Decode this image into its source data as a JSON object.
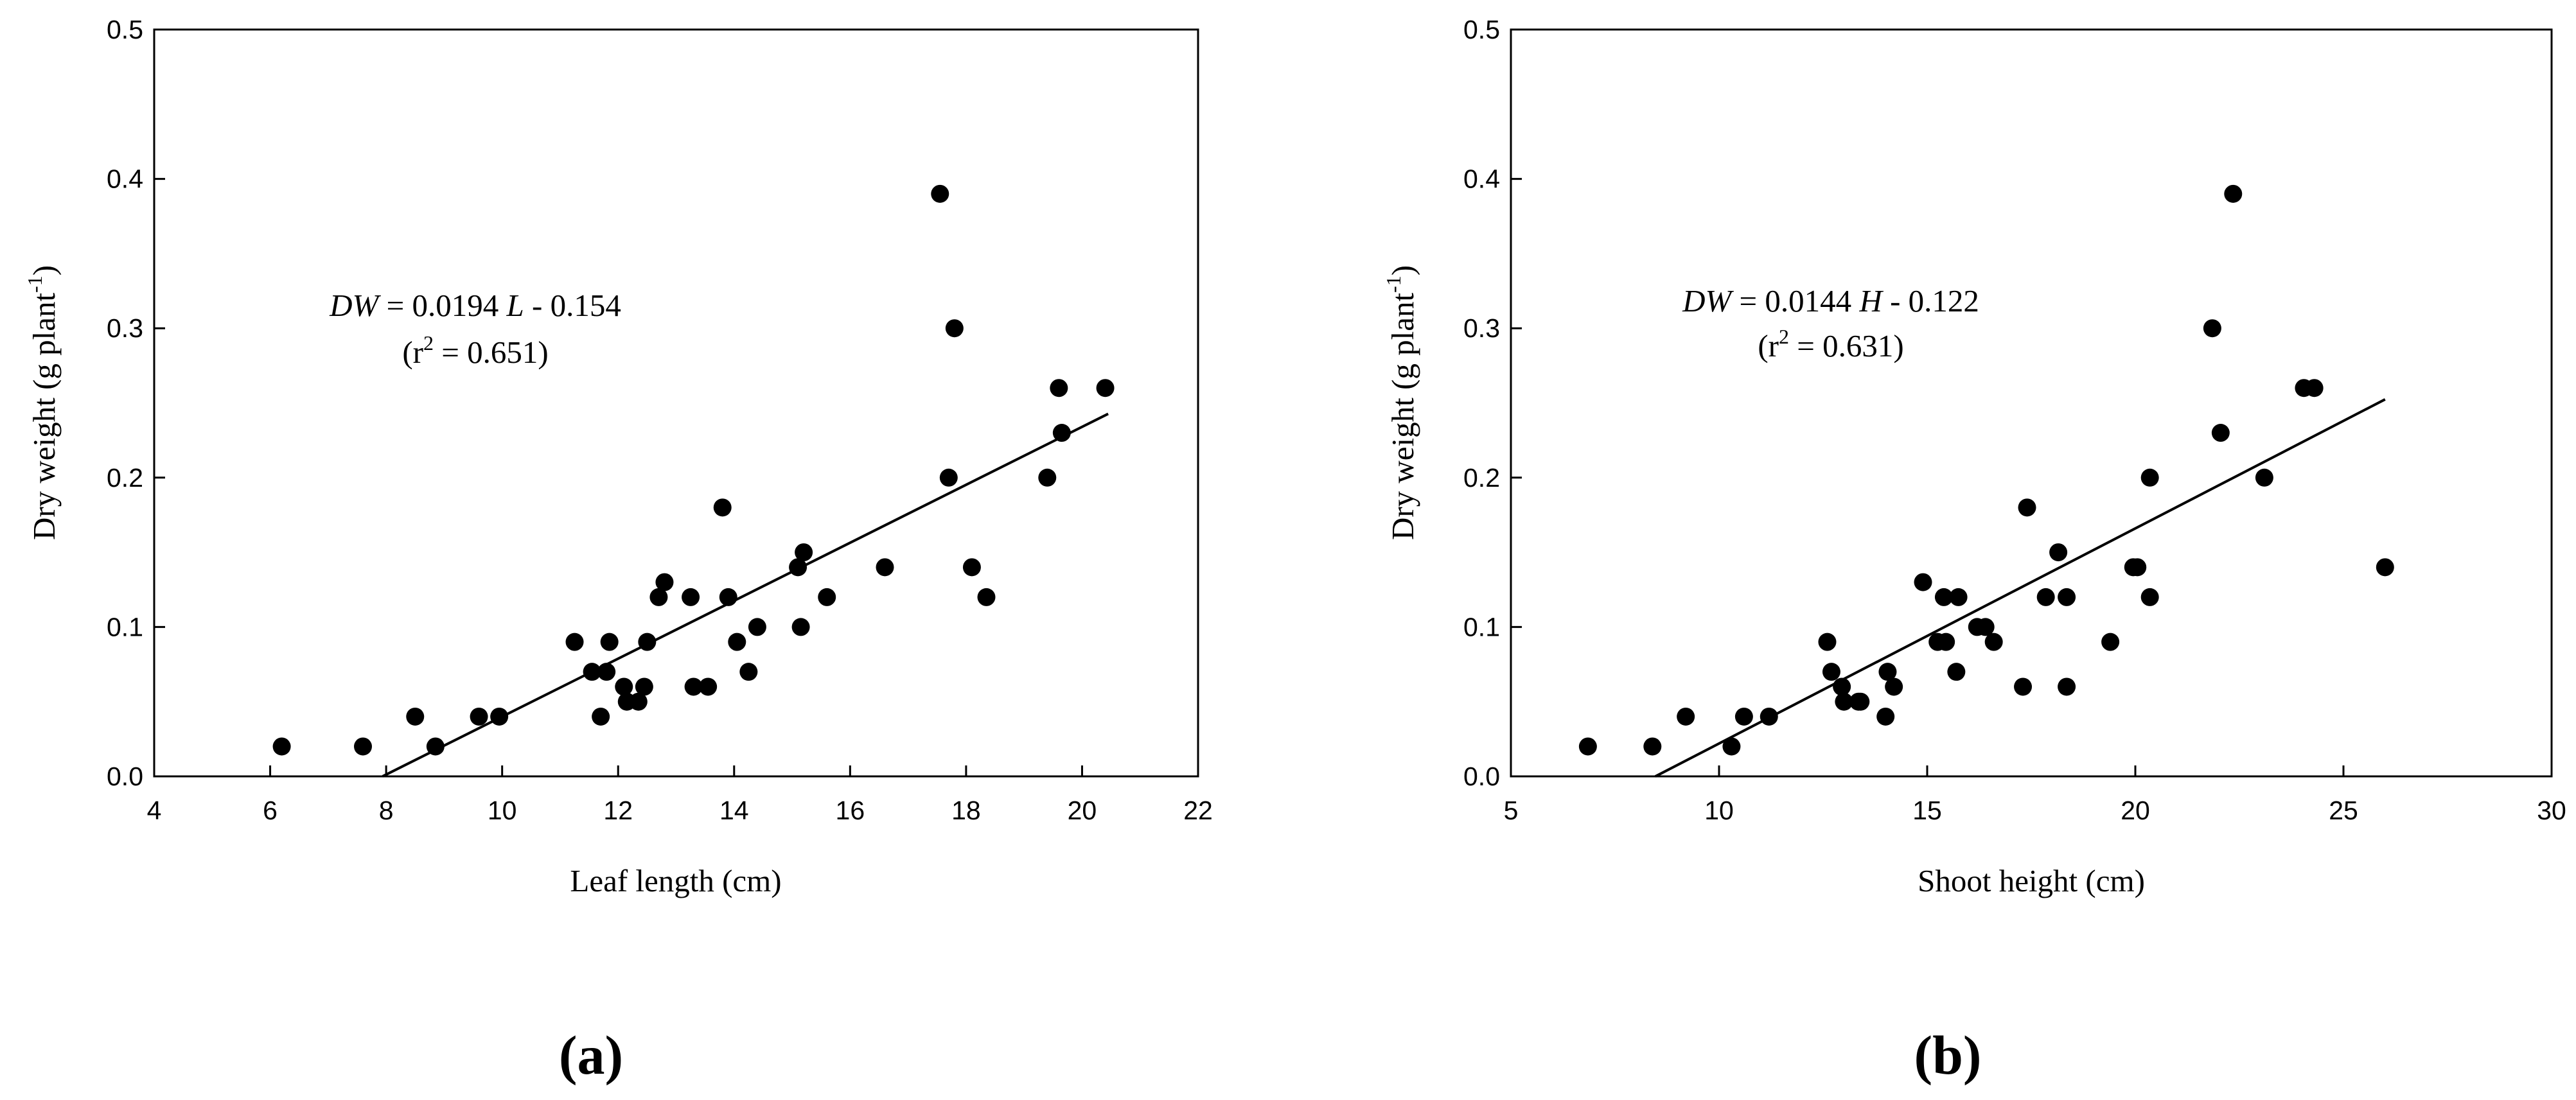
{
  "chart_data": [
    {
      "type": "scatter",
      "panel_label": "a",
      "xlabel": "Leaf length (cm)",
      "ylabel": "Dry weight (g plant",
      "ylabel_sup": "-1",
      "xlim": [
        4,
        22
      ],
      "ylim": [
        0.0,
        0.5
      ],
      "xticks": [
        "4",
        "6",
        "8",
        "10",
        "12",
        "14",
        "16",
        "18",
        "20",
        "22"
      ],
      "yticks": [
        "0.0",
        "0.1",
        "0.2",
        "0.3",
        "0.4",
        "0.5"
      ],
      "grid": false,
      "equation": {
        "lhs": "DW",
        "rest": " = 0.0194 ",
        "var": "L",
        "tail": " - 0.154"
      },
      "r2": {
        "pre": "(r",
        "sup": "2",
        "post": " = 0.651)"
      },
      "fit": {
        "slope": 0.0194,
        "intercept": -0.154,
        "x_range": [
          7.94,
          20.45
        ]
      },
      "points": [
        [
          6.2,
          0.02
        ],
        [
          7.6,
          0.02
        ],
        [
          8.5,
          0.04
        ],
        [
          8.85,
          0.02
        ],
        [
          9.6,
          0.04
        ],
        [
          9.95,
          0.04
        ],
        [
          11.25,
          0.09
        ],
        [
          11.55,
          0.07
        ],
        [
          11.7,
          0.04
        ],
        [
          11.8,
          0.07
        ],
        [
          11.85,
          0.09
        ],
        [
          12.1,
          0.06
        ],
        [
          12.15,
          0.05
        ],
        [
          12.35,
          0.05
        ],
        [
          12.45,
          0.06
        ],
        [
          12.5,
          0.09
        ],
        [
          12.7,
          0.12
        ],
        [
          12.8,
          0.13
        ],
        [
          13.25,
          0.12
        ],
        [
          13.3,
          0.06
        ],
        [
          13.55,
          0.06
        ],
        [
          13.8,
          0.18
        ],
        [
          13.9,
          0.12
        ],
        [
          14.05,
          0.09
        ],
        [
          14.25,
          0.07
        ],
        [
          14.4,
          0.1
        ],
        [
          15.1,
          0.14
        ],
        [
          15.15,
          0.1
        ],
        [
          15.2,
          0.15
        ],
        [
          15.6,
          0.12
        ],
        [
          16.6,
          0.14
        ],
        [
          17.55,
          0.39
        ],
        [
          17.7,
          0.2
        ],
        [
          17.8,
          0.3
        ],
        [
          18.1,
          0.14
        ],
        [
          18.35,
          0.12
        ],
        [
          19.4,
          0.2
        ],
        [
          19.6,
          0.26
        ],
        [
          19.65,
          0.23
        ],
        [
          20.4,
          0.26
        ]
      ]
    },
    {
      "type": "scatter",
      "panel_label": "b",
      "xlabel": "Shoot height (cm)",
      "ylabel": "Dry weight (g plant",
      "ylabel_sup": "-1",
      "xlim": [
        5,
        30
      ],
      "ylim": [
        0.0,
        0.5
      ],
      "xticks": [
        "5",
        "10",
        "15",
        "20",
        "25",
        "30"
      ],
      "yticks": [
        "0.0",
        "0.1",
        "0.2",
        "0.3",
        "0.4",
        "0.5"
      ],
      "grid": false,
      "equation": {
        "lhs": "DW",
        "rest": " = 0.0144 ",
        "var": "H",
        "tail": " - 0.122"
      },
      "r2": {
        "pre": "(r",
        "sup": "2",
        "post": " = 0.631)"
      },
      "fit": {
        "slope": 0.0144,
        "intercept": -0.122,
        "x_range": [
          8.47,
          26.0
        ]
      },
      "points": [
        [
          6.85,
          0.02
        ],
        [
          8.4,
          0.02
        ],
        [
          9.2,
          0.04
        ],
        [
          10.3,
          0.02
        ],
        [
          10.6,
          0.04
        ],
        [
          11.2,
          0.04
        ],
        [
          12.6,
          0.09
        ],
        [
          12.7,
          0.07
        ],
        [
          12.95,
          0.06
        ],
        [
          13.0,
          0.05
        ],
        [
          13.35,
          0.05
        ],
        [
          13.4,
          0.05
        ],
        [
          14.0,
          0.04
        ],
        [
          14.05,
          0.07
        ],
        [
          14.2,
          0.06
        ],
        [
          14.9,
          0.13
        ],
        [
          15.25,
          0.09
        ],
        [
          15.4,
          0.12
        ],
        [
          15.45,
          0.09
        ],
        [
          15.7,
          0.07
        ],
        [
          15.75,
          0.12
        ],
        [
          16.2,
          0.1
        ],
        [
          16.4,
          0.1
        ],
        [
          16.6,
          0.09
        ],
        [
          17.3,
          0.06
        ],
        [
          17.4,
          0.18
        ],
        [
          17.85,
          0.12
        ],
        [
          18.15,
          0.15
        ],
        [
          18.35,
          0.12
        ],
        [
          18.35,
          0.06
        ],
        [
          19.4,
          0.09
        ],
        [
          19.95,
          0.14
        ],
        [
          20.05,
          0.14
        ],
        [
          20.35,
          0.2
        ],
        [
          20.35,
          0.12
        ],
        [
          21.85,
          0.3
        ],
        [
          22.05,
          0.23
        ],
        [
          22.35,
          0.39
        ],
        [
          23.1,
          0.2
        ],
        [
          24.05,
          0.26
        ],
        [
          24.3,
          0.26
        ],
        [
          26.0,
          0.14
        ]
      ]
    }
  ]
}
